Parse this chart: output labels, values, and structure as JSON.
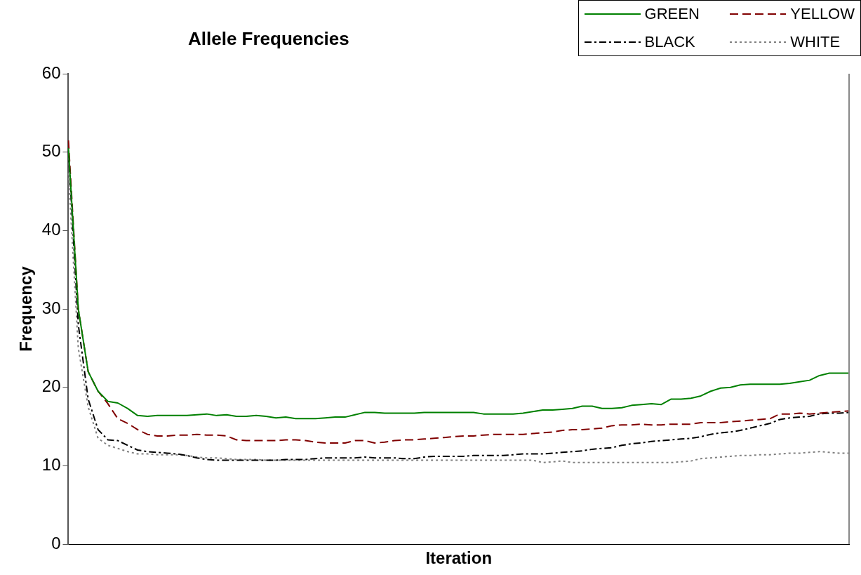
{
  "chart_data": {
    "type": "line",
    "title": "Allele Frequencies",
    "xlabel": "Iteration",
    "ylabel": "Frequency",
    "categories": [
      null,
      null,
      null,
      null,
      null,
      null,
      null,
      null,
      null,
      null,
      null,
      null,
      null,
      null,
      null,
      null,
      null,
      null,
      null,
      null,
      null,
      null,
      null,
      null,
      null,
      null,
      null,
      null,
      null,
      null,
      null,
      null,
      null,
      null,
      null,
      null,
      null,
      null,
      null,
      null,
      null,
      null,
      null,
      null,
      null,
      null,
      null,
      null,
      null,
      null,
      null,
      null,
      null,
      null,
      null,
      null,
      null,
      null,
      null,
      null,
      null,
      null,
      null,
      null,
      null,
      null,
      null,
      null,
      null,
      null,
      null,
      null,
      null,
      null,
      null,
      null,
      null,
      null,
      null,
      null
    ],
    "ylim": [
      0,
      60
    ],
    "yticks": [
      0,
      10,
      20,
      30,
      40,
      50,
      60
    ],
    "grid": false,
    "legend": "top right",
    "marker": "none",
    "series": [
      {
        "name": "GREEN",
        "color": "#008000",
        "line_style": "solid",
        "values": [
          50.5,
          30,
          22,
          19.5,
          18.2,
          18.0,
          17.3,
          16.4,
          16.3,
          16.4,
          16.4,
          16.4,
          16.4,
          16.5,
          16.6,
          16.4,
          16.5,
          16.3,
          16.3,
          16.4,
          16.3,
          16.1,
          16.2,
          16.0,
          16.0,
          16.0,
          16.1,
          16.2,
          16.2,
          16.5,
          16.8,
          16.8,
          16.7,
          16.7,
          16.7,
          16.7,
          16.8,
          16.8,
          16.8,
          16.8,
          16.8,
          16.8,
          16.6,
          16.6,
          16.6,
          16.6,
          16.7,
          16.9,
          17.1,
          17.1,
          17.2,
          17.3,
          17.6,
          17.6,
          17.3,
          17.3,
          17.4,
          17.7,
          17.8,
          17.9,
          17.8,
          18.5,
          18.5,
          18.6,
          18.9,
          19.5,
          19.9,
          20.0,
          20.3,
          20.4,
          20.4,
          20.4,
          20.4,
          20.5,
          20.7,
          20.9,
          21.5,
          21.8,
          21.8,
          21.8
        ]
      },
      {
        "name": "YELLOW",
        "color": "#800000",
        "line_style": "dashed",
        "values": [
          51.5,
          30,
          22,
          19.5,
          17.9,
          16.0,
          15.4,
          14.6,
          14.0,
          13.8,
          13.8,
          13.9,
          13.9,
          14.0,
          13.9,
          13.9,
          13.8,
          13.3,
          13.2,
          13.2,
          13.2,
          13.2,
          13.3,
          13.3,
          13.2,
          13.0,
          12.9,
          12.9,
          12.9,
          13.2,
          13.2,
          12.9,
          13.0,
          13.2,
          13.3,
          13.3,
          13.4,
          13.5,
          13.6,
          13.7,
          13.8,
          13.8,
          13.9,
          14.0,
          14.0,
          14.0,
          14.0,
          14.1,
          14.2,
          14.3,
          14.5,
          14.6,
          14.6,
          14.7,
          14.8,
          15.1,
          15.2,
          15.2,
          15.3,
          15.2,
          15.2,
          15.3,
          15.3,
          15.3,
          15.5,
          15.5,
          15.5,
          15.6,
          15.7,
          15.8,
          15.9,
          16.0,
          16.6,
          16.6,
          16.7,
          16.6,
          16.7,
          16.8,
          16.9,
          17.0
        ]
      },
      {
        "name": "BLACK",
        "color": "#000000",
        "line_style": "dashdot",
        "values": [
          50.2,
          28,
          18.5,
          14.6,
          13.3,
          13.2,
          12.6,
          12.0,
          11.8,
          11.7,
          11.6,
          11.5,
          11.3,
          11.0,
          10.8,
          10.7,
          10.7,
          10.7,
          10.7,
          10.7,
          10.7,
          10.7,
          10.8,
          10.8,
          10.8,
          10.9,
          11.0,
          11.0,
          11.0,
          11.0,
          11.1,
          11.0,
          11.0,
          11.0,
          10.9,
          10.9,
          11.1,
          11.2,
          11.2,
          11.2,
          11.2,
          11.3,
          11.3,
          11.3,
          11.3,
          11.4,
          11.5,
          11.5,
          11.5,
          11.6,
          11.7,
          11.8,
          11.9,
          12.1,
          12.2,
          12.3,
          12.6,
          12.8,
          12.9,
          13.1,
          13.2,
          13.3,
          13.4,
          13.5,
          13.7,
          14.0,
          14.2,
          14.3,
          14.5,
          14.8,
          15.1,
          15.4,
          15.9,
          16.1,
          16.2,
          16.3,
          16.6,
          16.7,
          16.7,
          16.8
        ]
      },
      {
        "name": "WHITE",
        "color": "#808080",
        "line_style": "dotted",
        "values": [
          47.3,
          25,
          17.5,
          13.5,
          12.6,
          12.2,
          11.8,
          11.5,
          11.5,
          11.4,
          11.4,
          11.4,
          11.3,
          11.1,
          11.0,
          11.0,
          10.9,
          10.8,
          10.8,
          10.8,
          10.7,
          10.7,
          10.7,
          10.7,
          10.7,
          10.7,
          10.7,
          10.7,
          10.7,
          10.7,
          10.7,
          10.7,
          10.7,
          10.7,
          10.7,
          10.7,
          10.7,
          10.7,
          10.7,
          10.7,
          10.7,
          10.7,
          10.7,
          10.7,
          10.7,
          10.7,
          10.7,
          10.7,
          10.4,
          10.5,
          10.6,
          10.4,
          10.4,
          10.4,
          10.4,
          10.4,
          10.4,
          10.4,
          10.4,
          10.4,
          10.4,
          10.4,
          10.5,
          10.6,
          10.9,
          11.0,
          11.1,
          11.2,
          11.3,
          11.3,
          11.4,
          11.4,
          11.5,
          11.6,
          11.6,
          11.7,
          11.8,
          11.7,
          11.6,
          11.6
        ]
      }
    ]
  }
}
